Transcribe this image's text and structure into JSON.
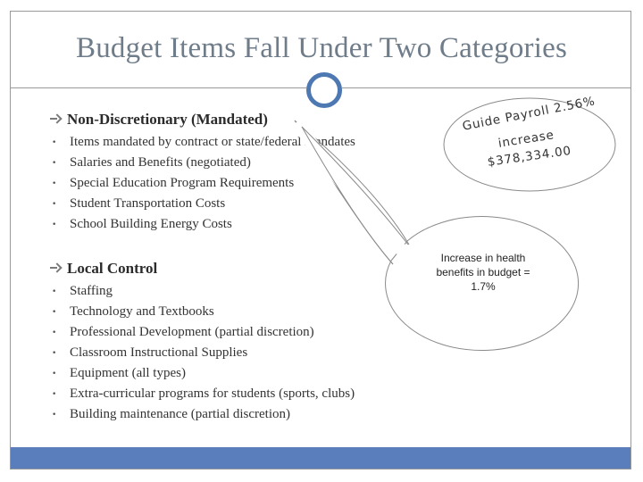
{
  "title": "Budget Items Fall Under Two Categories",
  "sections": [
    {
      "heading": "Non-Discretionary (Mandated)",
      "items": [
        "Items mandated by contract or state/federal mandates",
        "Salaries and Benefits (negotiated)",
        "Special Education Program Requirements",
        "Student Transportation Costs",
        "School Building Energy Costs"
      ]
    },
    {
      "heading": "Local Control",
      "items": [
        "Staffing",
        "Technology and Textbooks",
        "Professional Development (partial discretion)",
        "Classroom Instructional Supplies",
        "Equipment (all types)",
        "Extra-curricular programs for students (sports, clubs)",
        "Building maintenance (partial discretion)"
      ]
    }
  ],
  "callout_cloud": {
    "line1": "Guide Payroll 2.56%",
    "line2": "increase",
    "line3": "$378,334.00"
  },
  "callout_bubble": {
    "line1": "Increase in health",
    "line2": "benefits in budget =",
    "line3": "1.7%"
  },
  "colors": {
    "accent": "#5a7ebc",
    "ring": "#4e78b2",
    "title": "#6f7c8a"
  }
}
